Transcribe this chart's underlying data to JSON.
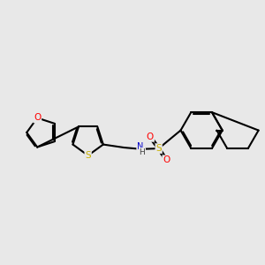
{
  "background_color": "#e8e8e8",
  "atom_colors": {
    "S": "#c8b000",
    "O": "#ff0000",
    "N": "#0000cc",
    "H": "#404040",
    "C": "#000000"
  },
  "bond_color": "#000000",
  "bond_width": 1.5,
  "figsize": [
    3.0,
    3.0
  ],
  "dpi": 100
}
